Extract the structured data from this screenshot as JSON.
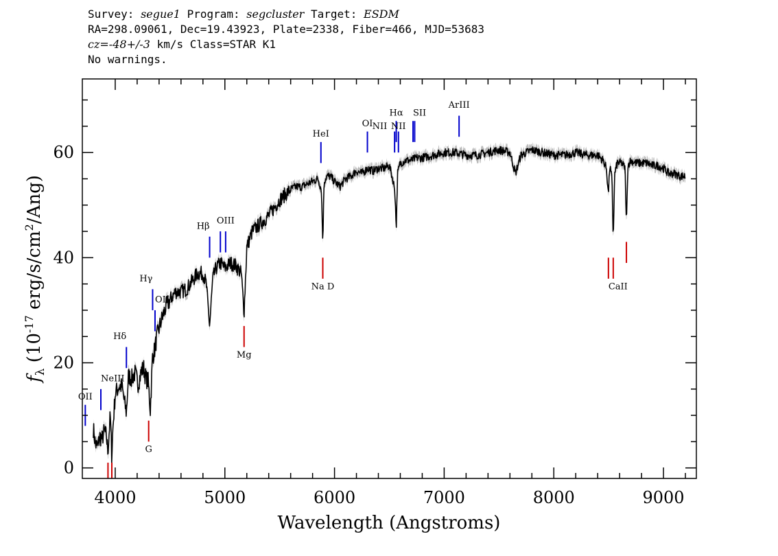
{
  "header": {
    "line1": {
      "survey_label": "Survey: ",
      "survey": "segue1",
      "program_label": " Program: ",
      "program": "segcluster",
      "target_label": " Target: ",
      "target": "ESDM"
    },
    "line2": "RA=298.09061, Dec=19.43923, Plate=2338, Fiber=466, MJD=53683",
    "line3": {
      "cz_label": "cz=",
      "cz_value": "-48+/-3",
      "cz_rest": " km/s Class=STAR K1"
    },
    "line4": "No warnings."
  },
  "chart_data": {
    "type": "line",
    "xlabel": "Wavelength (Angstroms)",
    "ylabel_prefix": "f",
    "ylabel_sub": "λ",
    "ylabel_mid": " (10",
    "ylabel_exp": "-17",
    "ylabel_rest": " erg/s/cm",
    "ylabel_exp2": "2",
    "ylabel_end": "/Ang)",
    "xlim": [
      3700,
      9300
    ],
    "ylim": [
      -2,
      74
    ],
    "x_ticks": [
      4000,
      5000,
      6000,
      7000,
      8000,
      9000
    ],
    "y_ticks": [
      0,
      20,
      40,
      60
    ],
    "colors": {
      "spectrum": "#000000",
      "error_band": "#bbbbbb",
      "emission": "#0000cc",
      "absorption": "#cc0000"
    },
    "spectrum": {
      "x": [
        3800,
        3820,
        3840,
        3860,
        3880,
        3900,
        3920,
        3933,
        3945,
        3955,
        3968,
        3980,
        4000,
        4030,
        4060,
        4080,
        4102,
        4120,
        4150,
        4180,
        4210,
        4240,
        4260,
        4280,
        4300,
        4310,
        4320,
        4340,
        4360,
        4380,
        4420,
        4460,
        4500,
        4550,
        4600,
        4650,
        4700,
        4750,
        4800,
        4830,
        4861,
        4890,
        4920,
        4960,
        5000,
        5050,
        5100,
        5150,
        5175,
        5200,
        5250,
        5300,
        5350,
        5400,
        5450,
        5500,
        5550,
        5600,
        5650,
        5700,
        5750,
        5800,
        5850,
        5880,
        5893,
        5905,
        5930,
        5960,
        6000,
        6050,
        6100,
        6150,
        6200,
        6250,
        6300,
        6350,
        6400,
        6450,
        6500,
        6530,
        6550,
        6563,
        6575,
        6600,
        6650,
        6700,
        6750,
        6800,
        6900,
        7000,
        7100,
        7200,
        7300,
        7400,
        7500,
        7600,
        7650,
        7700,
        7800,
        7900,
        8000,
        8100,
        8200,
        8300,
        8400,
        8450,
        8480,
        8498,
        8510,
        8530,
        8542,
        8555,
        8580,
        8620,
        8650,
        8662,
        8675,
        8700,
        8750,
        8800,
        8850,
        8900,
        8950,
        9000,
        9050,
        9100,
        9150,
        9200
      ],
      "y": [
        7.5,
        4.5,
        4,
        6,
        5.5,
        7,
        6,
        3,
        7,
        10,
        2.5,
        8,
        14,
        15.5,
        15.5,
        13,
        10.5,
        17.5,
        17,
        18,
        16,
        18.5,
        19,
        17,
        16.5,
        14,
        11,
        21,
        22.5,
        25,
        28,
        30.5,
        32,
        33.5,
        33.5,
        34,
        35.5,
        37,
        37,
        35,
        27,
        36,
        38,
        39,
        38,
        39,
        38.5,
        37,
        29.5,
        42,
        45,
        46,
        47,
        48,
        49.5,
        51,
        52,
        53,
        53.5,
        53.5,
        54,
        54.5,
        55,
        53,
        43,
        54.5,
        55.5,
        55.5,
        54.5,
        53.5,
        55,
        55.5,
        56.5,
        56,
        57,
        56.5,
        57,
        57,
        57.5,
        55,
        53,
        45.5,
        56,
        58,
        58.5,
        58.5,
        59,
        59,
        59.5,
        60,
        60,
        59.5,
        59.5,
        60,
        60.5,
        60,
        56,
        59.5,
        60.5,
        60,
        59.5,
        59.5,
        60,
        59.5,
        59.5,
        58.5,
        57,
        52,
        57.5,
        55,
        43.5,
        56,
        58,
        58,
        57,
        46,
        57.5,
        58.5,
        58,
        58,
        58,
        57.5,
        57.5,
        57,
        56,
        56,
        55.5,
        55.5
      ]
    },
    "emission_lines": [
      {
        "label": "OII",
        "lambda": 3727,
        "y0": 8,
        "y1": 12,
        "lx": 3727,
        "ly": 13,
        "anchor": "middle"
      },
      {
        "label": "NeIII",
        "lambda": 3869,
        "y0": 11,
        "y1": 15,
        "lx": 3869,
        "ly": 16.5,
        "anchor": "start"
      },
      {
        "label": "Hδ",
        "lambda": 4102,
        "y0": 19,
        "y1": 23,
        "lx": 4102,
        "ly": 24.5,
        "anchor": "end"
      },
      {
        "label": "Hγ",
        "lambda": 4341,
        "y0": 30,
        "y1": 34,
        "lx": 4341,
        "ly": 35.5,
        "anchor": "end"
      },
      {
        "label": "OIII",
        "lambda": 4363,
        "y0": 26,
        "y1": 30,
        "lx": 4363,
        "ly": 31.5,
        "anchor": "start"
      },
      {
        "label": "Hβ",
        "lambda": 4861,
        "y0": 40,
        "y1": 44,
        "lx": 4861,
        "ly": 45.5,
        "anchor": "end"
      },
      {
        "label": "",
        "lambda": 4959,
        "y0": 41,
        "y1": 45,
        "lx": 4959,
        "ly": 46,
        "anchor": "middle"
      },
      {
        "label": "OIII",
        "lambda": 5007,
        "y0": 41,
        "y1": 45,
        "lx": 5007,
        "ly": 46.5,
        "anchor": "middle"
      },
      {
        "label": "HeI",
        "lambda": 5876,
        "y0": 58,
        "y1": 62,
        "lx": 5876,
        "ly": 63,
        "anchor": "middle"
      },
      {
        "label": "OI",
        "lambda": 6300,
        "y0": 60,
        "y1": 64,
        "lx": 6300,
        "ly": 65,
        "anchor": "middle"
      },
      {
        "label": "NII",
        "lambda": 6548,
        "y0": 60,
        "y1": 64,
        "lx": 6480,
        "ly": 64.5,
        "anchor": "end"
      },
      {
        "label": "Hα",
        "lambda": 6563,
        "y0": 62,
        "y1": 66,
        "lx": 6563,
        "ly": 67,
        "anchor": "middle"
      },
      {
        "label": "NII",
        "lambda": 6583,
        "y0": 60,
        "y1": 64,
        "lx": 6583,
        "ly": 64.5,
        "anchor": "middle"
      },
      {
        "label": "SII",
        "lambda": 6716,
        "y0": 62,
        "y1": 66,
        "lx": 6716,
        "ly": 67,
        "anchor": "start"
      },
      {
        "label": "",
        "lambda": 6731,
        "y0": 62,
        "y1": 66,
        "lx": 6731,
        "ly": 67,
        "anchor": "middle"
      },
      {
        "label": "ArIII",
        "lambda": 7136,
        "y0": 63,
        "y1": 67,
        "lx": 7136,
        "ly": 68.5,
        "anchor": "middle"
      }
    ],
    "absorption_lines": [
      {
        "label": "",
        "lambda": 3934,
        "y0": -2,
        "y1": 1,
        "lx": 3934,
        "ly": -1,
        "anchor": "middle"
      },
      {
        "label": "",
        "lambda": 3969,
        "y0": -2,
        "y1": 1,
        "lx": 3969,
        "ly": -1,
        "anchor": "middle"
      },
      {
        "label": "G",
        "lambda": 4305,
        "y0": 5,
        "y1": 9,
        "lx": 4305,
        "ly": 3,
        "anchor": "middle"
      },
      {
        "label": "Mg",
        "lambda": 5175,
        "y0": 23,
        "y1": 27,
        "lx": 5175,
        "ly": 21,
        "anchor": "middle"
      },
      {
        "label": "Na  D",
        "lambda": 5893,
        "y0": 36,
        "y1": 40,
        "lx": 5893,
        "ly": 34,
        "anchor": "middle"
      },
      {
        "label": "CaII",
        "lambda": 8498,
        "y0": 36,
        "y1": 40,
        "lx": 8498,
        "ly": 34,
        "anchor": "start"
      },
      {
        "label": "",
        "lambda": 8542,
        "y0": 36,
        "y1": 40,
        "lx": 8542,
        "ly": 34,
        "anchor": "middle"
      },
      {
        "label": "",
        "lambda": 8662,
        "y0": 39,
        "y1": 43,
        "lx": 8662,
        "ly": 34,
        "anchor": "middle"
      }
    ]
  }
}
